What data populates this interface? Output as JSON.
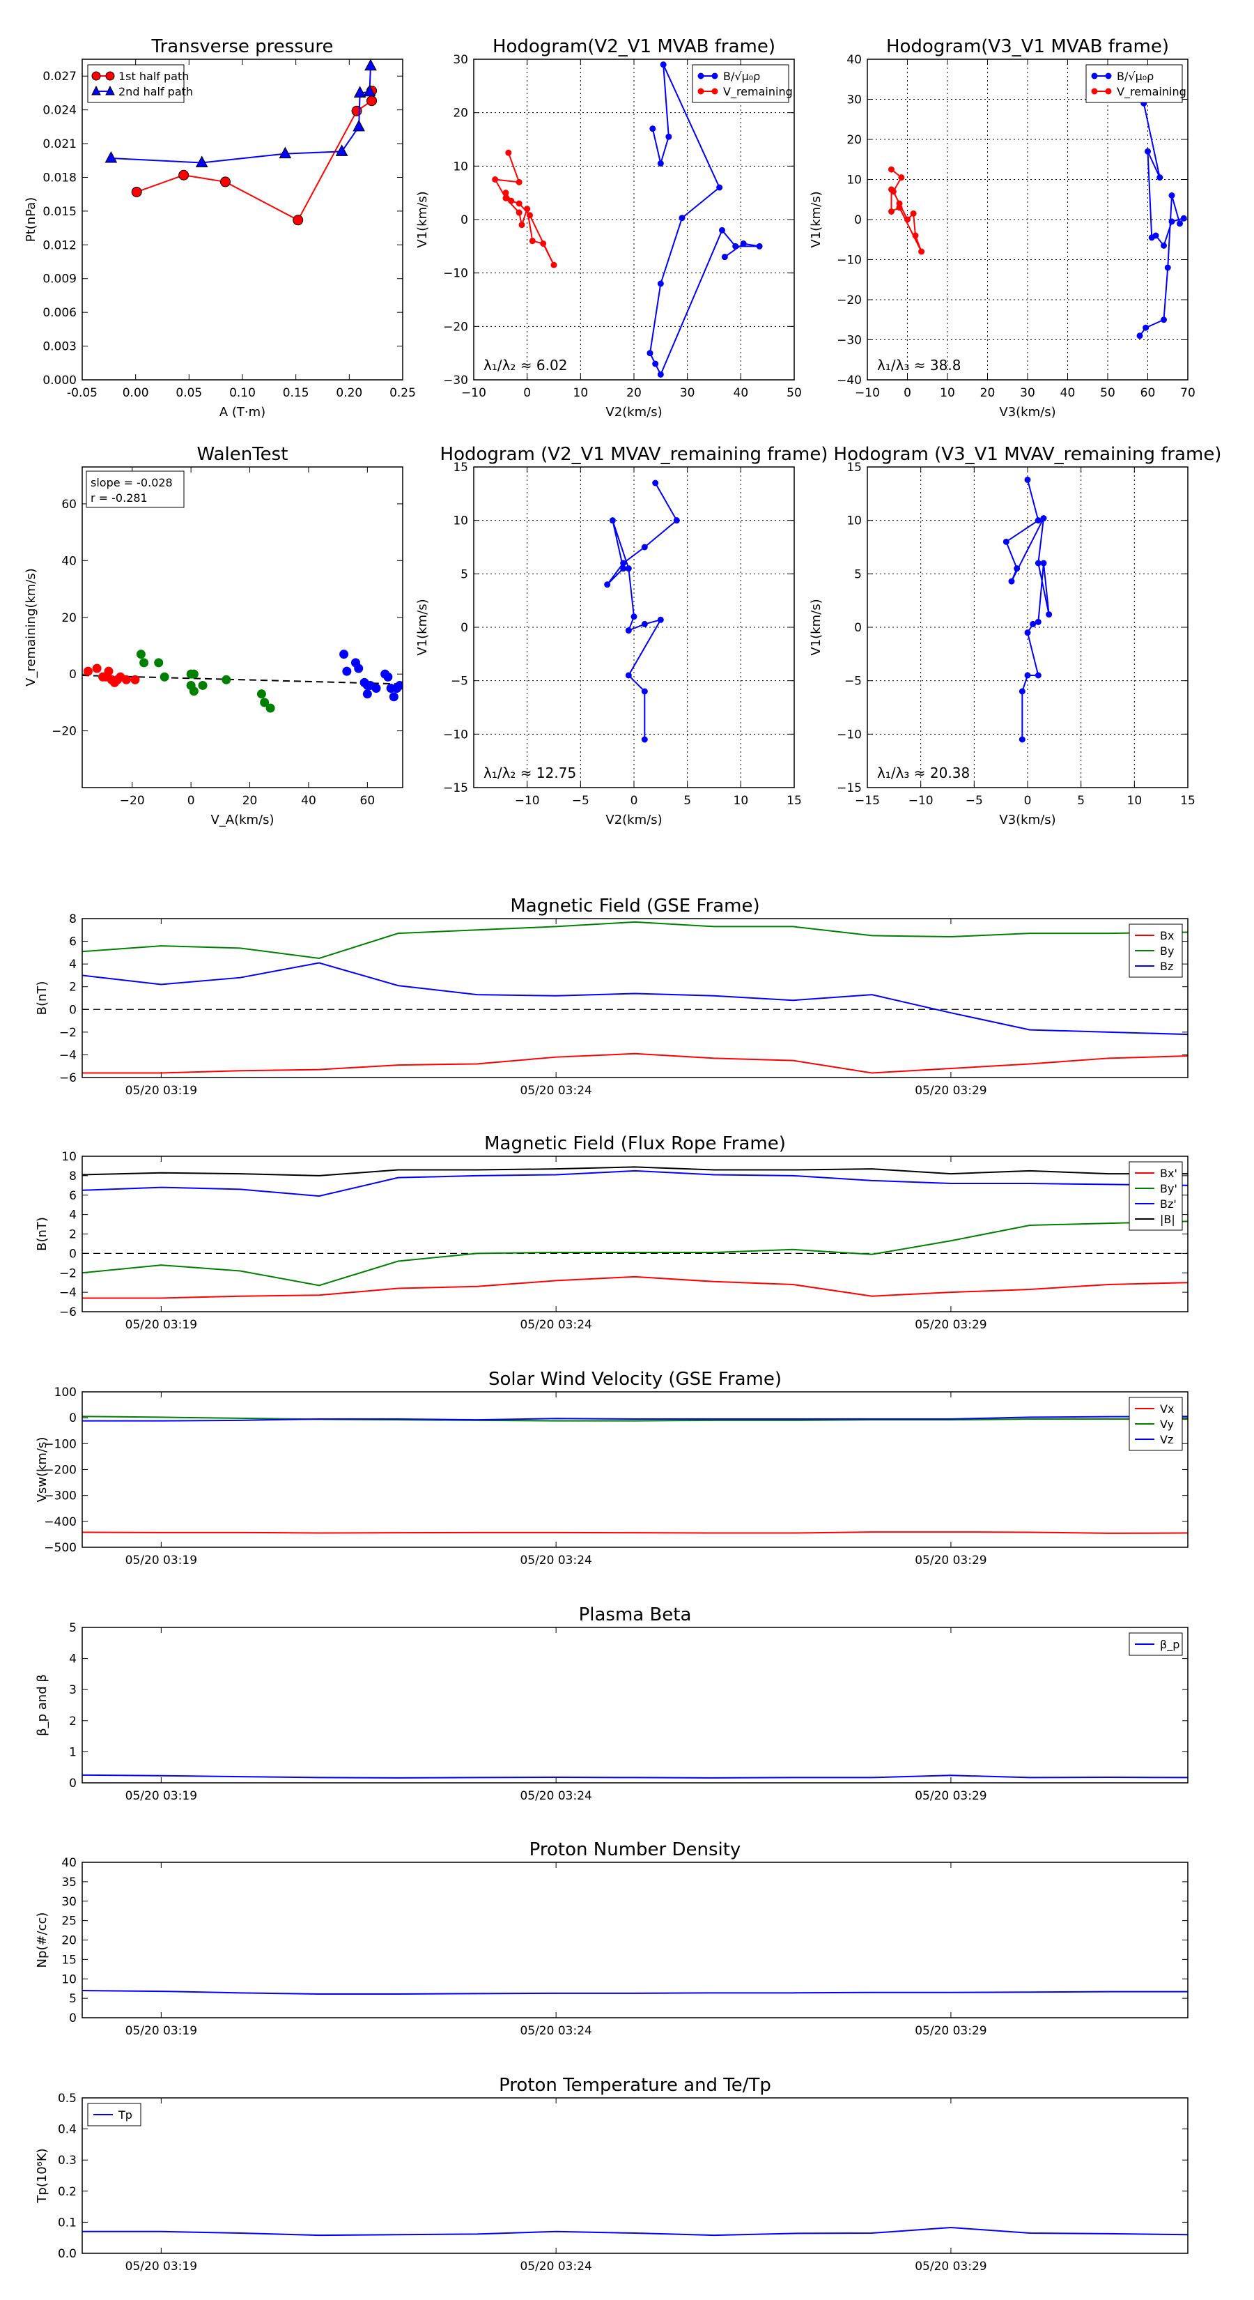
{
  "colors": {
    "red": "#ff0000",
    "blue": "#0000ff",
    "green": "#008000",
    "black": "#000000",
    "grid": "#000000"
  },
  "chart_data": [
    {
      "id": "p1",
      "type": "line",
      "title": "Transverse pressure",
      "xlabel": "A (T·m)",
      "ylabel": "Pt(nPa)",
      "xlim": [
        -0.05,
        0.25
      ],
      "ylim": [
        0.0,
        0.0285
      ],
      "xticks": [
        "-0.05",
        "0.00",
        "0.05",
        "0.10",
        "0.15",
        "0.20",
        "0.25"
      ],
      "yticks": [
        "0.000",
        "0.003",
        "0.006",
        "0.009",
        "0.012",
        "0.015",
        "0.018",
        "0.021",
        "0.024",
        "0.027"
      ],
      "legend": {
        "loc": "upper-left",
        "entries": [
          "1st half path",
          "2nd half path"
        ]
      },
      "series": [
        {
          "name": "1st half path",
          "color": "red",
          "marker": "circle",
          "x": [
            0.001,
            0.045,
            0.084,
            0.152,
            0.207,
            0.221,
            0.221
          ],
          "y": [
            0.0167,
            0.0182,
            0.0176,
            0.0142,
            0.0239,
            0.0248,
            0.0257
          ]
        },
        {
          "name": "2nd half path",
          "color": "blue",
          "marker": "triangle",
          "x": [
            -0.023,
            0.062,
            0.14,
            0.193,
            0.209,
            0.21,
            0.219,
            0.22
          ],
          "y": [
            0.0197,
            0.0193,
            0.0201,
            0.0203,
            0.0225,
            0.0255,
            0.0256,
            0.0279
          ]
        }
      ]
    },
    {
      "id": "p2",
      "type": "line",
      "title": "Hodogram(V2_V1 MVAB frame)",
      "xlabel": "V2(km/s)",
      "ylabel": "V1(km/s)",
      "xlim": [
        -10,
        50
      ],
      "ylim": [
        -30,
        30
      ],
      "xticks": [
        "−10",
        "0",
        "10",
        "20",
        "30",
        "40",
        "50"
      ],
      "yticks": [
        "−30",
        "−20",
        "−10",
        "0",
        "10",
        "20",
        "30"
      ],
      "grid": true,
      "legend": {
        "loc": "upper-right",
        "entries": [
          "B/√μ₀ρ",
          "V_remaining"
        ]
      },
      "annotation": "λ₁/λ₂ ≈ 6.02",
      "series": [
        {
          "name": "B/√μ₀ρ",
          "color": "blue",
          "x": [
            23.5,
            25.0,
            26.5,
            25.5,
            36,
            29,
            25,
            23,
            24,
            25,
            36.5,
            39,
            43.5,
            40.5,
            37
          ],
          "y": [
            17,
            10.5,
            15.5,
            29,
            6,
            0.3,
            -12,
            -25,
            -27,
            -29,
            -2,
            -5,
            -5,
            -4.5,
            -7
          ]
        },
        {
          "name": "V_remaining",
          "color": "red",
          "x": [
            -3.5,
            -1.5,
            -6,
            -4,
            -1.5,
            -1,
            0,
            1,
            3,
            5,
            0.5,
            -1.5,
            -3,
            -4
          ],
          "y": [
            12.5,
            7,
            7.5,
            4,
            1.3,
            -1,
            2,
            -4,
            -4.5,
            -8.5,
            0.8,
            3,
            3.5,
            5
          ]
        }
      ]
    },
    {
      "id": "p3",
      "type": "line",
      "title": "Hodogram(V3_V1 MVAB frame)",
      "xlabel": "V3(km/s)",
      "ylabel": "V1(km/s)",
      "xlim": [
        -10,
        70
      ],
      "ylim": [
        -40,
        40
      ],
      "xticks": [
        "−10",
        "0",
        "10",
        "20",
        "30",
        "40",
        "50",
        "60",
        "70"
      ],
      "yticks": [
        "−40",
        "−30",
        "−20",
        "−10",
        "0",
        "10",
        "20",
        "30",
        "40"
      ],
      "grid": true,
      "legend": {
        "loc": "upper-right",
        "entries": [
          "B/√μ₀ρ",
          "V_remaining"
        ]
      },
      "annotation": "λ₁/λ₃ ≈ 38.8",
      "series": [
        {
          "name": "B/√μ₀ρ",
          "color": "blue",
          "x": [
            59,
            63,
            60,
            61,
            62,
            64,
            66,
            69,
            68,
            66,
            65,
            64,
            59.5,
            58
          ],
          "y": [
            29,
            10.5,
            17,
            -4.5,
            -4,
            -6.5,
            -0.5,
            0.3,
            -1,
            6,
            -12,
            -25,
            -27,
            -29
          ]
        },
        {
          "name": "V_remaining",
          "color": "red",
          "x": [
            -4,
            -1.5,
            -3.5,
            -2,
            0,
            1.5,
            2,
            3.5,
            -2,
            -4,
            -4
          ],
          "y": [
            12.5,
            10.5,
            7,
            4,
            0,
            1.5,
            -4,
            -8,
            3,
            2,
            7.5
          ]
        }
      ]
    },
    {
      "id": "p4",
      "type": "scatter",
      "title": "WalenTest",
      "xlabel": "V_A(km/s)",
      "ylabel": "V_remaining(km/s)",
      "xlim": [
        -37,
        72
      ],
      "ylim": [
        -40,
        73
      ],
      "xticks": [
        "−20",
        "0",
        "20",
        "40",
        "60"
      ],
      "xtickvals": [
        -20,
        0,
        20,
        40,
        60
      ],
      "yticks": [
        "−20",
        "0",
        "20",
        "40",
        "60"
      ],
      "ytickvals": [
        -20,
        0,
        20,
        40,
        60
      ],
      "annotation": [
        "slope = -0.028",
        "r = -0.281"
      ],
      "fit": {
        "slope": -0.028,
        "intercept": -1.5
      },
      "series": [
        {
          "color": "red",
          "x": [
            -35,
            -32,
            -30,
            -29,
            -28,
            -27,
            -26,
            -25,
            -24,
            -22,
            -19
          ],
          "y": [
            1,
            2,
            -1,
            -1,
            1,
            -2,
            -3,
            -2,
            -1,
            -2,
            -2
          ]
        },
        {
          "color": "green",
          "x": [
            -17,
            -16,
            -11,
            -9,
            0,
            0,
            1,
            1,
            4,
            12,
            24,
            25,
            27
          ],
          "y": [
            7,
            4,
            4,
            -1,
            0,
            -4,
            0,
            -6,
            -4,
            -2,
            -7,
            -10,
            -12
          ]
        },
        {
          "color": "blue",
          "x": [
            52,
            53,
            56,
            57,
            59,
            60,
            60,
            61,
            63,
            66,
            67,
            68,
            69,
            70,
            71
          ],
          "y": [
            7,
            1,
            4,
            2,
            -3,
            -4,
            -7,
            -4,
            -5,
            0,
            -1,
            -5,
            -8,
            -5,
            -4
          ]
        }
      ]
    },
    {
      "id": "p5",
      "type": "line",
      "title": "Hodogram (V2_V1 MVAV_remaining frame)",
      "xlabel": "V2(km/s)",
      "ylabel": "V1(km/s)",
      "xlim": [
        -15,
        15
      ],
      "ylim": [
        -15,
        15
      ],
      "xticks": [
        "−10",
        "−5",
        "0",
        "5",
        "10",
        "15"
      ],
      "xtickvals": [
        -10,
        -5,
        0,
        5,
        10,
        15
      ],
      "yticks": [
        "−15",
        "−10",
        "−5",
        "0",
        "5",
        "10",
        "15"
      ],
      "grid": true,
      "annotation": "λ₁/λ₂ ≈ 12.75",
      "series": [
        {
          "color": "blue",
          "x": [
            2,
            4,
            1,
            -1,
            -2.5,
            -1,
            -2,
            -0.5,
            0,
            -0.5,
            1,
            2.5,
            -0.5,
            1,
            1
          ],
          "y": [
            13.5,
            10,
            7.5,
            6,
            4,
            5.5,
            10,
            5.5,
            1,
            -0.3,
            0.3,
            0.7,
            -4.5,
            -6,
            -10.5
          ]
        }
      ]
    },
    {
      "id": "p6",
      "type": "line",
      "title": "Hodogram (V3_V1 MVAV_remaining frame)",
      "xlabel": "V3(km/s)",
      "ylabel": "V1(km/s)",
      "xlim": [
        -15,
        15
      ],
      "ylim": [
        -15,
        15
      ],
      "xticks": [
        "−15",
        "−10",
        "−5",
        "0",
        "5",
        "10",
        "15"
      ],
      "yticks": [
        "−15",
        "−10",
        "−5",
        "0",
        "5",
        "10",
        "15"
      ],
      "grid": true,
      "annotation": "λ₁/λ₃ ≈ 20.38",
      "series": [
        {
          "color": "blue",
          "x": [
            0,
            1,
            -2,
            -1,
            -1.5,
            1.5,
            1,
            2,
            1.5,
            1,
            0.5,
            0,
            1,
            0,
            -0.5,
            -0.5
          ],
          "y": [
            13.8,
            10,
            8,
            5.5,
            4.3,
            10.2,
            6,
            1.2,
            6,
            0.5,
            0.3,
            -0.5,
            -4.5,
            -4.5,
            -6,
            -10.5
          ]
        }
      ]
    },
    {
      "id": "ts1",
      "type": "line",
      "title": "Magnetic Field (GSE Frame)",
      "ylabel": "B(nT)",
      "ylim": [
        -6,
        8
      ],
      "yticks": [
        "−6",
        "−4",
        "−2",
        "0",
        "2",
        "4",
        "6",
        "8"
      ],
      "ytickvals": [
        -6,
        -4,
        -2,
        0,
        2,
        4,
        6,
        8
      ],
      "zero_line": true,
      "legend": {
        "loc": "upper-right",
        "entries": [
          "Bx",
          "By",
          "Bz"
        ]
      },
      "x": [
        0,
        1,
        2,
        3,
        4,
        5,
        6,
        7,
        8,
        9,
        10,
        11,
        12,
        13,
        14
      ],
      "series": [
        {
          "name": "Bx",
          "color": "red",
          "values": [
            -5.6,
            -5.6,
            -5.4,
            -5.3,
            -4.9,
            -4.8,
            -4.2,
            -3.9,
            -4.3,
            -4.5,
            -5.6,
            -5.2,
            -4.8,
            -4.3,
            -4.1
          ]
        },
        {
          "name": "By",
          "color": "green",
          "values": [
            5.1,
            5.6,
            5.4,
            4.5,
            6.7,
            7.0,
            7.3,
            7.7,
            7.3,
            7.3,
            6.5,
            6.4,
            6.7,
            6.7,
            6.8
          ]
        },
        {
          "name": "Bz",
          "color": "blue",
          "values": [
            3.0,
            2.2,
            2.8,
            4.1,
            2.1,
            1.3,
            1.2,
            1.4,
            1.2,
            0.8,
            1.3,
            -0.3,
            -1.8,
            -2.0,
            -2.2
          ]
        }
      ]
    },
    {
      "id": "ts2",
      "type": "line",
      "title": "Magnetic Field (Flux Rope Frame)",
      "ylabel": "B(nT)",
      "ylim": [
        -6,
        10
      ],
      "yticks": [
        "−6",
        "−4",
        "−2",
        "0",
        "2",
        "4",
        "6",
        "8",
        "10"
      ],
      "ytickvals": [
        -6,
        -4,
        -2,
        0,
        2,
        4,
        6,
        8,
        10
      ],
      "zero_line": true,
      "legend": {
        "loc": "upper-right",
        "entries": [
          "Bx'",
          "By'",
          "Bz'",
          "|B|"
        ]
      },
      "x": [
        0,
        1,
        2,
        3,
        4,
        5,
        6,
        7,
        8,
        9,
        10,
        11,
        12,
        13,
        14
      ],
      "series": [
        {
          "name": "Bx'",
          "color": "red",
          "values": [
            -4.6,
            -4.6,
            -4.4,
            -4.3,
            -3.6,
            -3.4,
            -2.8,
            -2.4,
            -2.9,
            -3.2,
            -4.4,
            -4.0,
            -3.7,
            -3.2,
            -3.0
          ]
        },
        {
          "name": "By'",
          "color": "green",
          "values": [
            -2.0,
            -1.2,
            -1.8,
            -3.3,
            -0.8,
            0.0,
            0.1,
            0.1,
            0.1,
            0.4,
            -0.1,
            1.3,
            2.9,
            3.1,
            3.3
          ]
        },
        {
          "name": "Bz'",
          "color": "blue",
          "values": [
            6.5,
            6.8,
            6.6,
            5.9,
            7.8,
            8.0,
            8.1,
            8.5,
            8.1,
            8.0,
            7.5,
            7.2,
            7.2,
            7.1,
            7.0
          ]
        },
        {
          "name": "|B|",
          "color": "black",
          "values": [
            8.1,
            8.3,
            8.2,
            8.0,
            8.6,
            8.6,
            8.7,
            8.9,
            8.6,
            8.6,
            8.7,
            8.2,
            8.5,
            8.2,
            8.2
          ]
        }
      ]
    },
    {
      "id": "ts3",
      "type": "line",
      "title": "Solar Wind Velocity (GSE Frame)",
      "ylabel": "Vsw(km/s)",
      "ylim": [
        -500,
        100
      ],
      "yticks": [
        "−500",
        "−400",
        "−300",
        "−200",
        "−100",
        "0",
        "100"
      ],
      "ytickvals": [
        -500,
        -400,
        -300,
        -200,
        -100,
        0,
        100
      ],
      "legend": {
        "loc": "upper-right",
        "entries": [
          "Vx",
          "Vy",
          "Vz"
        ]
      },
      "x": [
        0,
        1,
        2,
        3,
        4,
        5,
        6,
        7,
        8,
        9,
        10,
        11,
        12,
        13,
        14
      ],
      "series": [
        {
          "name": "Vx",
          "color": "red",
          "values": [
            -442,
            -443,
            -443,
            -445,
            -444,
            -443,
            -443,
            -444,
            -445,
            -445,
            -441,
            -441,
            -442,
            -446,
            -445
          ]
        },
        {
          "name": "Vy",
          "color": "green",
          "values": [
            5,
            2,
            -2,
            -6,
            -8,
            -10,
            -12,
            -12,
            -10,
            -10,
            -8,
            -8,
            -5,
            -5,
            -5
          ]
        },
        {
          "name": "Vz",
          "color": "blue",
          "values": [
            -12,
            -12,
            -10,
            -5,
            -5,
            -8,
            -3,
            -5,
            -5,
            -5,
            -5,
            -5,
            2,
            4,
            5
          ]
        }
      ]
    },
    {
      "id": "ts4",
      "type": "line",
      "title": "Plasma Beta",
      "ylabel": "β_p and β",
      "ylim": [
        0,
        5
      ],
      "yticks": [
        "0",
        "1",
        "2",
        "3",
        "4",
        "5"
      ],
      "ytickvals": [
        0,
        1,
        2,
        3,
        4,
        5
      ],
      "legend": {
        "loc": "upper-right",
        "entries": [
          "β_p"
        ]
      },
      "x": [
        0,
        1,
        2,
        3,
        4,
        5,
        6,
        7,
        8,
        9,
        10,
        11,
        12,
        13,
        14
      ],
      "series": [
        {
          "name": "β_p",
          "color": "blue",
          "values": [
            0.25,
            0.23,
            0.2,
            0.17,
            0.16,
            0.17,
            0.18,
            0.17,
            0.16,
            0.17,
            0.17,
            0.24,
            0.17,
            0.18,
            0.17
          ]
        }
      ]
    },
    {
      "id": "ts5",
      "type": "line",
      "title": "Proton Number Density",
      "ylabel": "Np(#/cc)",
      "ylim": [
        0,
        40
      ],
      "yticks": [
        "0",
        "5",
        "10",
        "15",
        "20",
        "25",
        "30",
        "35",
        "40"
      ],
      "ytickvals": [
        0,
        5,
        10,
        15,
        20,
        25,
        30,
        35,
        40
      ],
      "x": [
        0,
        1,
        2,
        3,
        4,
        5,
        6,
        7,
        8,
        9,
        10,
        11,
        12,
        13,
        14
      ],
      "series": [
        {
          "name": "Np",
          "color": "blue",
          "values": [
            7.0,
            6.8,
            6.4,
            6.1,
            6.1,
            6.2,
            6.3,
            6.3,
            6.4,
            6.4,
            6.5,
            6.5,
            6.6,
            6.7,
            6.7
          ]
        }
      ]
    },
    {
      "id": "ts6",
      "type": "line",
      "title": "Proton Temperature and Te/Tp",
      "ylabel": "Tp(10⁶K)",
      "ylim": [
        0,
        0.5
      ],
      "yticks": [
        "0.0",
        "0.1",
        "0.2",
        "0.3",
        "0.4",
        "0.5"
      ],
      "ytickvals": [
        0,
        0.1,
        0.2,
        0.3,
        0.4,
        0.5
      ],
      "legend": {
        "loc": "upper-left",
        "entries": [
          "Tp"
        ]
      },
      "x": [
        0,
        1,
        2,
        3,
        4,
        5,
        6,
        7,
        8,
        9,
        10,
        11,
        12,
        13,
        14
      ],
      "series": [
        {
          "name": "Tp",
          "color": "blue",
          "values": [
            0.07,
            0.07,
            0.065,
            0.058,
            0.06,
            0.062,
            0.07,
            0.065,
            0.058,
            0.064,
            0.065,
            0.083,
            0.065,
            0.063,
            0.06
          ]
        }
      ]
    }
  ],
  "time_axis": {
    "tick_labels": [
      "05/20 03:19",
      "05/20 03:24",
      "05/20 03:29"
    ],
    "tick_positions": [
      1,
      6,
      11
    ],
    "xlim": [
      0,
      14
    ]
  }
}
